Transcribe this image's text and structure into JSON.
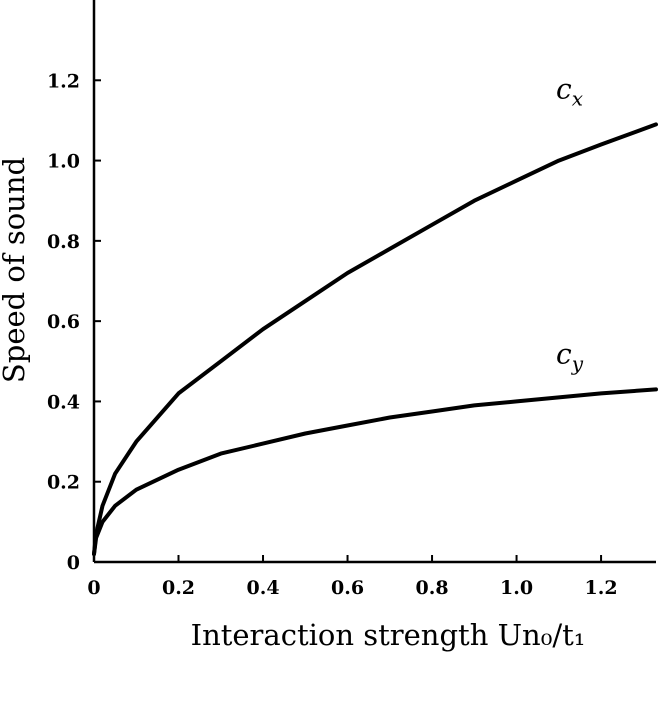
{
  "chart_data": {
    "type": "line",
    "title": "",
    "xlabel": "Interaction strength Un₀/t₁",
    "ylabel": "Speed of sound",
    "xlim": [
      0,
      1.33
    ],
    "ylim": [
      0,
      1.4
    ],
    "x_ticks": [
      "0",
      "0.2",
      "0.4",
      "0.6",
      "0.8",
      "1.0",
      "1.2"
    ],
    "y_ticks": [
      "0",
      "0.2",
      "0.4",
      "0.6",
      "0.8",
      "1.0",
      "1.2"
    ],
    "grid": false,
    "series": [
      {
        "name": "c_x",
        "label_main": "c",
        "label_sub": "x",
        "x": [
          0,
          0.005,
          0.02,
          0.05,
          0.1,
          0.2,
          0.3,
          0.4,
          0.5,
          0.6,
          0.7,
          0.8,
          0.9,
          1.0,
          1.1,
          1.2,
          1.33
        ],
        "y": [
          0.02,
          0.07,
          0.14,
          0.22,
          0.3,
          0.42,
          0.5,
          0.58,
          0.65,
          0.72,
          0.78,
          0.84,
          0.9,
          0.95,
          1.0,
          1.04,
          1.09
        ]
      },
      {
        "name": "c_y",
        "label_main": "c",
        "label_sub": "y",
        "x": [
          0,
          0.005,
          0.02,
          0.05,
          0.1,
          0.2,
          0.3,
          0.4,
          0.5,
          0.6,
          0.7,
          0.8,
          0.9,
          1.0,
          1.1,
          1.2,
          1.33
        ],
        "y": [
          0.02,
          0.06,
          0.1,
          0.14,
          0.18,
          0.23,
          0.27,
          0.295,
          0.32,
          0.34,
          0.36,
          0.375,
          0.39,
          0.4,
          0.41,
          0.42,
          0.43
        ]
      }
    ]
  }
}
